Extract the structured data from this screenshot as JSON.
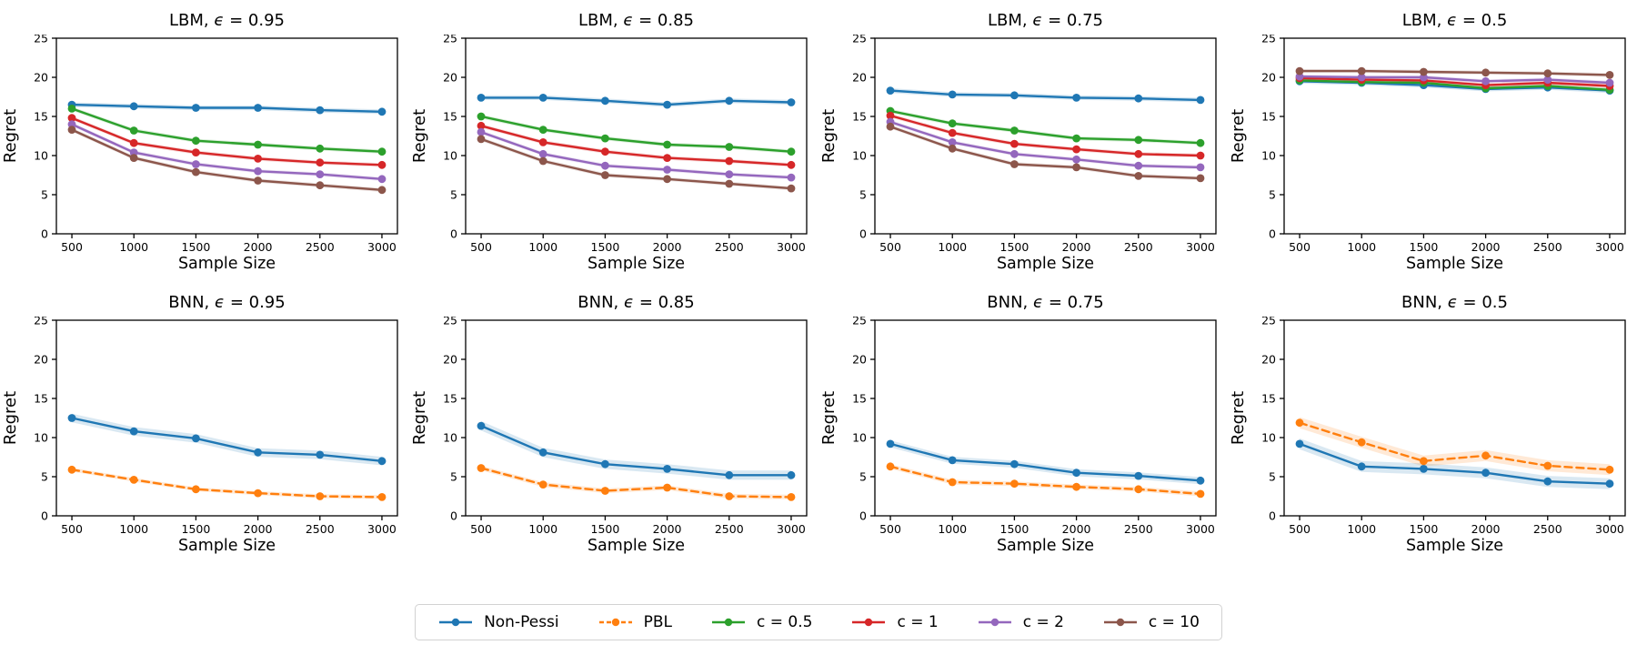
{
  "figure": {
    "background": "#ffffff",
    "xlabel": "Sample Size",
    "ylabel": "Regret",
    "x_tick_labels": [
      "500",
      "1000",
      "1500",
      "2000",
      "2500",
      "3000"
    ],
    "x_tick_values": [
      500,
      1000,
      1500,
      2000,
      2500,
      3000
    ],
    "y_tick_labels": [
      "0",
      "5",
      "10",
      "15",
      "20",
      "25"
    ],
    "y_tick_values": [
      0,
      5,
      10,
      15,
      20,
      25
    ],
    "xlim": [
      375,
      3125
    ],
    "ylim": [
      0,
      25
    ],
    "grid": false
  },
  "legend": {
    "position": "bottom-center",
    "items": [
      {
        "label": "Non-Pessi",
        "color": "#1f77b4",
        "dashed": false
      },
      {
        "label": "PBL",
        "color": "#ff7f0e",
        "dashed": true
      },
      {
        "label": "c = 0.5",
        "color": "#2ca02c",
        "dashed": false
      },
      {
        "label": "c = 1",
        "color": "#d62728",
        "dashed": false
      },
      {
        "label": "c = 2",
        "color": "#9467bd",
        "dashed": false
      },
      {
        "label": "c = 10",
        "color": "#8c564b",
        "dashed": false
      }
    ]
  },
  "chart_data": [
    {
      "type": "line",
      "title": "LBM, ϵ = 0.95",
      "title_parts": {
        "prefix": "LBM, ",
        "epsilon": "ϵ",
        "suffix": " = 0.95"
      },
      "xlabel": "Sample Size",
      "ylabel": "Regret",
      "x": [
        500,
        1000,
        1500,
        2000,
        2500,
        3000
      ],
      "xlim": [
        375,
        3125
      ],
      "ylim": [
        0,
        25
      ],
      "series": [
        {
          "name": "Non-Pessi",
          "color": "#1f77b4",
          "dashed": false,
          "band": 0.3,
          "values": [
            16.5,
            16.3,
            16.1,
            16.1,
            15.8,
            15.6
          ]
        },
        {
          "name": "c = 0.5",
          "color": "#2ca02c",
          "dashed": false,
          "band": 0.25,
          "values": [
            16.0,
            13.2,
            11.9,
            11.4,
            10.9,
            10.5
          ]
        },
        {
          "name": "c = 1",
          "color": "#d62728",
          "dashed": false,
          "band": 0.25,
          "values": [
            14.8,
            11.6,
            10.4,
            9.6,
            9.1,
            8.8
          ]
        },
        {
          "name": "c = 2",
          "color": "#9467bd",
          "dashed": false,
          "band": 0.25,
          "values": [
            14.0,
            10.4,
            8.9,
            8.0,
            7.6,
            7.0
          ]
        },
        {
          "name": "c = 10",
          "color": "#8c564b",
          "dashed": false,
          "band": 0.25,
          "values": [
            13.3,
            9.7,
            7.9,
            6.8,
            6.2,
            5.6
          ]
        }
      ]
    },
    {
      "type": "line",
      "title": "LBM, ϵ = 0.85",
      "title_parts": {
        "prefix": "LBM, ",
        "epsilon": "ϵ",
        "suffix": " = 0.85"
      },
      "xlabel": "Sample Size",
      "ylabel": "Regret",
      "x": [
        500,
        1000,
        1500,
        2000,
        2500,
        3000
      ],
      "xlim": [
        375,
        3125
      ],
      "ylim": [
        0,
        25
      ],
      "series": [
        {
          "name": "Non-Pessi",
          "color": "#1f77b4",
          "dashed": false,
          "band": 0.3,
          "values": [
            17.4,
            17.4,
            17.0,
            16.5,
            17.0,
            16.8
          ]
        },
        {
          "name": "c = 0.5",
          "color": "#2ca02c",
          "dashed": false,
          "band": 0.25,
          "values": [
            15.0,
            13.3,
            12.2,
            11.4,
            11.1,
            10.5
          ]
        },
        {
          "name": "c = 1",
          "color": "#d62728",
          "dashed": false,
          "band": 0.25,
          "values": [
            13.8,
            11.7,
            10.5,
            9.7,
            9.3,
            8.8
          ]
        },
        {
          "name": "c = 2",
          "color": "#9467bd",
          "dashed": false,
          "band": 0.25,
          "values": [
            13.0,
            10.2,
            8.7,
            8.2,
            7.6,
            7.2
          ]
        },
        {
          "name": "c = 10",
          "color": "#8c564b",
          "dashed": false,
          "band": 0.25,
          "values": [
            12.1,
            9.3,
            7.5,
            7.0,
            6.4,
            5.8
          ]
        }
      ]
    },
    {
      "type": "line",
      "title": "LBM, ϵ = 0.75",
      "title_parts": {
        "prefix": "LBM, ",
        "epsilon": "ϵ",
        "suffix": " = 0.75"
      },
      "xlabel": "Sample Size",
      "ylabel": "Regret",
      "x": [
        500,
        1000,
        1500,
        2000,
        2500,
        3000
      ],
      "xlim": [
        375,
        3125
      ],
      "ylim": [
        0,
        25
      ],
      "series": [
        {
          "name": "Non-Pessi",
          "color": "#1f77b4",
          "dashed": false,
          "band": 0.3,
          "values": [
            18.3,
            17.8,
            17.7,
            17.4,
            17.3,
            17.1
          ]
        },
        {
          "name": "c = 0.5",
          "color": "#2ca02c",
          "dashed": false,
          "band": 0.25,
          "values": [
            15.7,
            14.1,
            13.2,
            12.2,
            12.0,
            11.6
          ]
        },
        {
          "name": "c = 1",
          "color": "#d62728",
          "dashed": false,
          "band": 0.25,
          "values": [
            15.1,
            12.9,
            11.5,
            10.8,
            10.2,
            10.0
          ]
        },
        {
          "name": "c = 2",
          "color": "#9467bd",
          "dashed": false,
          "band": 0.25,
          "values": [
            14.3,
            11.7,
            10.2,
            9.5,
            8.7,
            8.5
          ]
        },
        {
          "name": "c = 10",
          "color": "#8c564b",
          "dashed": false,
          "band": 0.25,
          "values": [
            13.7,
            10.9,
            8.9,
            8.5,
            7.4,
            7.1
          ]
        }
      ]
    },
    {
      "type": "line",
      "title": "LBM, ϵ = 0.5",
      "title_parts": {
        "prefix": "LBM, ",
        "epsilon": "ϵ",
        "suffix": " = 0.5"
      },
      "xlabel": "Sample Size",
      "ylabel": "Regret",
      "x": [
        500,
        1000,
        1500,
        2000,
        2500,
        3000
      ],
      "xlim": [
        375,
        3125
      ],
      "ylim": [
        0,
        25
      ],
      "series": [
        {
          "name": "Non-Pessi",
          "color": "#1f77b4",
          "dashed": false,
          "band": 0.3,
          "values": [
            19.5,
            19.3,
            19.0,
            18.5,
            18.7,
            18.3
          ]
        },
        {
          "name": "c = 0.5",
          "color": "#2ca02c",
          "dashed": false,
          "band": 0.25,
          "values": [
            19.6,
            19.4,
            19.3,
            18.6,
            18.9,
            18.4
          ]
        },
        {
          "name": "c = 1",
          "color": "#d62728",
          "dashed": false,
          "band": 0.25,
          "values": [
            19.9,
            19.7,
            19.6,
            19.0,
            19.3,
            18.9
          ]
        },
        {
          "name": "c = 2",
          "color": "#9467bd",
          "dashed": false,
          "band": 0.25,
          "values": [
            20.1,
            20.0,
            20.0,
            19.5,
            19.7,
            19.3
          ]
        },
        {
          "name": "c = 10",
          "color": "#8c564b",
          "dashed": false,
          "band": 0.25,
          "values": [
            20.8,
            20.8,
            20.7,
            20.6,
            20.5,
            20.3
          ]
        }
      ]
    },
    {
      "type": "line",
      "title": "BNN, ϵ = 0.95",
      "title_parts": {
        "prefix": "BNN, ",
        "epsilon": "ϵ",
        "suffix": " = 0.95"
      },
      "xlabel": "Sample Size",
      "ylabel": "Regret",
      "x": [
        500,
        1000,
        1500,
        2000,
        2500,
        3000
      ],
      "xlim": [
        375,
        3125
      ],
      "ylim": [
        0,
        25
      ],
      "series": [
        {
          "name": "Non-Pessi",
          "color": "#1f77b4",
          "dashed": false,
          "band": 0.55,
          "values": [
            12.5,
            10.8,
            9.9,
            8.1,
            7.8,
            7.0
          ]
        },
        {
          "name": "PBL",
          "color": "#ff7f0e",
          "dashed": true,
          "band": 0.25,
          "values": [
            5.9,
            4.6,
            3.4,
            2.9,
            2.5,
            2.4
          ]
        }
      ]
    },
    {
      "type": "line",
      "title": "BNN, ϵ = 0.85",
      "title_parts": {
        "prefix": "BNN, ",
        "epsilon": "ϵ",
        "suffix": " = 0.85"
      },
      "xlabel": "Sample Size",
      "ylabel": "Regret",
      "x": [
        500,
        1000,
        1500,
        2000,
        2500,
        3000
      ],
      "xlim": [
        375,
        3125
      ],
      "ylim": [
        0,
        25
      ],
      "series": [
        {
          "name": "Non-Pessi",
          "color": "#1f77b4",
          "dashed": false,
          "band": 0.6,
          "values": [
            11.5,
            8.1,
            6.6,
            6.0,
            5.2,
            5.2
          ]
        },
        {
          "name": "PBL",
          "color": "#ff7f0e",
          "dashed": true,
          "band": 0.3,
          "values": [
            6.1,
            4.0,
            3.2,
            3.6,
            2.5,
            2.4
          ]
        }
      ]
    },
    {
      "type": "line",
      "title": "BNN, ϵ = 0.75",
      "title_parts": {
        "prefix": "BNN, ",
        "epsilon": "ϵ",
        "suffix": " = 0.75"
      },
      "xlabel": "Sample Size",
      "ylabel": "Regret",
      "x": [
        500,
        1000,
        1500,
        2000,
        2500,
        3000
      ],
      "xlim": [
        375,
        3125
      ],
      "ylim": [
        0,
        25
      ],
      "series": [
        {
          "name": "Non-Pessi",
          "color": "#1f77b4",
          "dashed": false,
          "band": 0.45,
          "values": [
            9.2,
            7.1,
            6.6,
            5.5,
            5.1,
            4.5
          ]
        },
        {
          "name": "PBL",
          "color": "#ff7f0e",
          "dashed": true,
          "band": 0.3,
          "values": [
            6.3,
            4.3,
            4.1,
            3.7,
            3.4,
            2.8
          ]
        }
      ]
    },
    {
      "type": "line",
      "title": "BNN, ϵ = 0.5",
      "title_parts": {
        "prefix": "BNN, ",
        "epsilon": "ϵ",
        "suffix": " = 0.5"
      },
      "xlabel": "Sample Size",
      "ylabel": "Regret",
      "x": [
        500,
        1000,
        1500,
        2000,
        2500,
        3000
      ],
      "xlim": [
        375,
        3125
      ],
      "ylim": [
        0,
        25
      ],
      "series": [
        {
          "name": "Non-Pessi",
          "color": "#1f77b4",
          "dashed": false,
          "band": 0.7,
          "values": [
            9.2,
            6.3,
            6.0,
            5.5,
            4.4,
            4.1
          ]
        },
        {
          "name": "PBL",
          "color": "#ff7f0e",
          "dashed": true,
          "band": 0.7,
          "values": [
            11.9,
            9.4,
            7.0,
            7.7,
            6.4,
            5.9
          ]
        }
      ]
    }
  ]
}
